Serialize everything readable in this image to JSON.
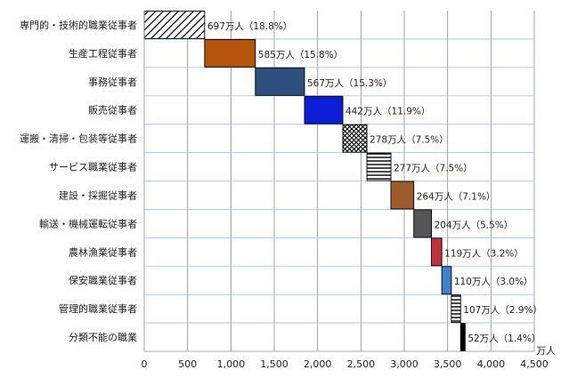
{
  "chart_data": {
    "type": "bar",
    "orientation": "horizontal-waterfall",
    "categories": [
      "専門的・技術的職業従事者",
      "生産工程従事者",
      "事務従事者",
      "販売従事者",
      "運搬・清掃・包装等従事者",
      "サービス職業従事者",
      "建設・採掘従事者",
      "輸送・機械運転従事者",
      "農林漁業従事者",
      "保安職業従事者",
      "管理的職業従事者",
      "分類不能の職業"
    ],
    "values": [
      697,
      585,
      567,
      442,
      278,
      277,
      264,
      204,
      119,
      110,
      107,
      52
    ],
    "data_labels": [
      "697万人（18.8%）",
      "585万人（15.8%）",
      "567万人（15.3%）",
      "442万人（11.9%）",
      "278万人（7.5%）",
      "277万人（7.5%）",
      "264万人（7.1%）",
      "204万人（5.5%）",
      "119万人（3.2%）",
      "110万人（3.0%）",
      "107万人（2.9%）",
      "52万人（1.4%）"
    ],
    "fills": [
      {
        "pattern": "diag",
        "color": "#000000"
      },
      {
        "pattern": "solid",
        "color": "#b45309"
      },
      {
        "pattern": "solid",
        "color": "#2f4f7f"
      },
      {
        "pattern": "solid",
        "color": "#0b1ed6"
      },
      {
        "pattern": "crosshatch",
        "color": "#000000"
      },
      {
        "pattern": "hstripe",
        "color": "#000000"
      },
      {
        "pattern": "solid",
        "color": "#9e5b2c"
      },
      {
        "pattern": "solid",
        "color": "#555555"
      },
      {
        "pattern": "solid",
        "color": "#c0323b"
      },
      {
        "pattern": "solid",
        "color": "#3f7fcf"
      },
      {
        "pattern": "hstripe",
        "color": "#000000"
      },
      {
        "pattern": "solid",
        "color": "#000000"
      }
    ],
    "x_ticks": [
      "0",
      "500",
      "1,000",
      "1,500",
      "2,000",
      "2,500",
      "3,000",
      "3,500",
      "4,000",
      "4,500"
    ],
    "x_tick_values": [
      0,
      500,
      1000,
      1500,
      2000,
      2500,
      3000,
      3500,
      4000,
      4500
    ],
    "xlim": [
      0,
      4500
    ],
    "x_unit": "万人",
    "gridlines": true,
    "row_separators": true,
    "title": "",
    "xlabel": "",
    "ylabel": ""
  }
}
